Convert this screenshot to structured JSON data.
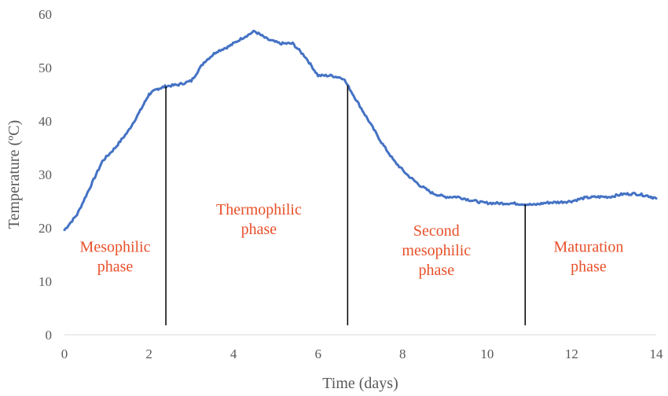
{
  "chart_data": {
    "type": "line",
    "title": "",
    "xlabel": "Time (days)",
    "ylabel": "Temperature (ºC)",
    "xlim": [
      0,
      14
    ],
    "ylim": [
      0,
      60
    ],
    "xticks": [
      0,
      2,
      4,
      6,
      8,
      10,
      12,
      14
    ],
    "yticks": [
      0,
      10,
      20,
      30,
      40,
      50,
      60
    ],
    "grid": false,
    "series": [
      {
        "name": "Temperature",
        "color": "#4472c4",
        "x": [
          0,
          0.3,
          0.6,
          0.9,
          1.2,
          1.5,
          1.8,
          2.0,
          2.2,
          2.4,
          2.7,
          3.0,
          3.3,
          3.6,
          3.9,
          4.2,
          4.5,
          4.8,
          5.1,
          5.4,
          5.7,
          6.0,
          6.3,
          6.6,
          6.9,
          7.2,
          7.5,
          7.8,
          8.1,
          8.4,
          8.7,
          9.0,
          9.3,
          9.6,
          9.9,
          10.2,
          10.5,
          10.8,
          11.1,
          11.4,
          11.7,
          12.0,
          12.3,
          12.6,
          12.9,
          13.2,
          13.5,
          13.8,
          14.0
        ],
        "values": [
          19.6,
          22.5,
          27.5,
          32.5,
          35,
          38,
          42,
          45,
          46,
          46.5,
          46.8,
          47.5,
          51,
          53,
          54,
          55.5,
          56.8,
          55.3,
          54.5,
          54.5,
          52,
          48.5,
          48.5,
          48,
          44,
          40,
          36,
          32.5,
          30,
          28,
          26.5,
          25.8,
          25.8,
          25.2,
          24.7,
          24.6,
          24.6,
          24.5,
          24.3,
          24.7,
          24.8,
          25,
          25.6,
          25.8,
          25.8,
          26.3,
          26.4,
          26,
          25.5
        ]
      }
    ],
    "phase_boundaries": [
      2.4,
      6.7,
      10.9
    ],
    "phase_labels": [
      {
        "lines": [
          "Mesophilic",
          "phase"
        ],
        "x": 1.2,
        "y": 15.5
      },
      {
        "lines": [
          "Thermophilic",
          "phase"
        ],
        "x": 4.6,
        "y": 22.5
      },
      {
        "lines": [
          "Second",
          "mesophilic",
          "phase"
        ],
        "x": 8.8,
        "y": 18.5
      },
      {
        "lines": [
          "Maturation",
          "phase"
        ],
        "x": 12.4,
        "y": 15.5
      }
    ]
  }
}
